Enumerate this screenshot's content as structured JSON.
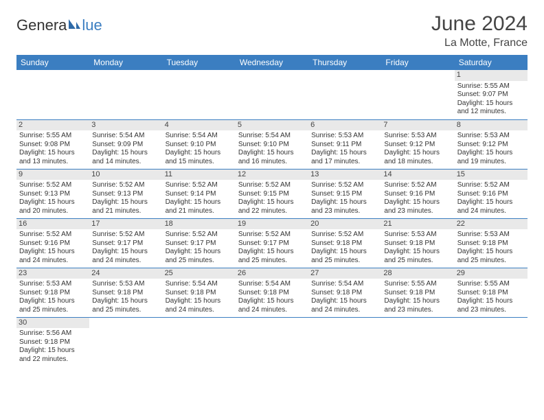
{
  "brand": {
    "part1": "Genera",
    "part2": "lue"
  },
  "header": {
    "month": "June 2024",
    "location": "La Motte, France"
  },
  "colors": {
    "accent": "#3b7ec1",
    "header_bg": "#3b7ec1",
    "daynum_bg": "#e9e9e9",
    "empty_bg": "#f2f2f2"
  },
  "weekdays": [
    "Sunday",
    "Monday",
    "Tuesday",
    "Wednesday",
    "Thursday",
    "Friday",
    "Saturday"
  ],
  "days": [
    {
      "n": 1,
      "sr": "5:55 AM",
      "ss": "9:07 PM",
      "dl": "15 hours and 12 minutes."
    },
    {
      "n": 2,
      "sr": "5:55 AM",
      "ss": "9:08 PM",
      "dl": "15 hours and 13 minutes."
    },
    {
      "n": 3,
      "sr": "5:54 AM",
      "ss": "9:09 PM",
      "dl": "15 hours and 14 minutes."
    },
    {
      "n": 4,
      "sr": "5:54 AM",
      "ss": "9:10 PM",
      "dl": "15 hours and 15 minutes."
    },
    {
      "n": 5,
      "sr": "5:54 AM",
      "ss": "9:10 PM",
      "dl": "15 hours and 16 minutes."
    },
    {
      "n": 6,
      "sr": "5:53 AM",
      "ss": "9:11 PM",
      "dl": "15 hours and 17 minutes."
    },
    {
      "n": 7,
      "sr": "5:53 AM",
      "ss": "9:12 PM",
      "dl": "15 hours and 18 minutes."
    },
    {
      "n": 8,
      "sr": "5:53 AM",
      "ss": "9:12 PM",
      "dl": "15 hours and 19 minutes."
    },
    {
      "n": 9,
      "sr": "5:52 AM",
      "ss": "9:13 PM",
      "dl": "15 hours and 20 minutes."
    },
    {
      "n": 10,
      "sr": "5:52 AM",
      "ss": "9:13 PM",
      "dl": "15 hours and 21 minutes."
    },
    {
      "n": 11,
      "sr": "5:52 AM",
      "ss": "9:14 PM",
      "dl": "15 hours and 21 minutes."
    },
    {
      "n": 12,
      "sr": "5:52 AM",
      "ss": "9:15 PM",
      "dl": "15 hours and 22 minutes."
    },
    {
      "n": 13,
      "sr": "5:52 AM",
      "ss": "9:15 PM",
      "dl": "15 hours and 23 minutes."
    },
    {
      "n": 14,
      "sr": "5:52 AM",
      "ss": "9:16 PM",
      "dl": "15 hours and 23 minutes."
    },
    {
      "n": 15,
      "sr": "5:52 AM",
      "ss": "9:16 PM",
      "dl": "15 hours and 24 minutes."
    },
    {
      "n": 16,
      "sr": "5:52 AM",
      "ss": "9:16 PM",
      "dl": "15 hours and 24 minutes."
    },
    {
      "n": 17,
      "sr": "5:52 AM",
      "ss": "9:17 PM",
      "dl": "15 hours and 24 minutes."
    },
    {
      "n": 18,
      "sr": "5:52 AM",
      "ss": "9:17 PM",
      "dl": "15 hours and 25 minutes."
    },
    {
      "n": 19,
      "sr": "5:52 AM",
      "ss": "9:17 PM",
      "dl": "15 hours and 25 minutes."
    },
    {
      "n": 20,
      "sr": "5:52 AM",
      "ss": "9:18 PM",
      "dl": "15 hours and 25 minutes."
    },
    {
      "n": 21,
      "sr": "5:53 AM",
      "ss": "9:18 PM",
      "dl": "15 hours and 25 minutes."
    },
    {
      "n": 22,
      "sr": "5:53 AM",
      "ss": "9:18 PM",
      "dl": "15 hours and 25 minutes."
    },
    {
      "n": 23,
      "sr": "5:53 AM",
      "ss": "9:18 PM",
      "dl": "15 hours and 25 minutes."
    },
    {
      "n": 24,
      "sr": "5:53 AM",
      "ss": "9:18 PM",
      "dl": "15 hours and 25 minutes."
    },
    {
      "n": 25,
      "sr": "5:54 AM",
      "ss": "9:18 PM",
      "dl": "15 hours and 24 minutes."
    },
    {
      "n": 26,
      "sr": "5:54 AM",
      "ss": "9:18 PM",
      "dl": "15 hours and 24 minutes."
    },
    {
      "n": 27,
      "sr": "5:54 AM",
      "ss": "9:18 PM",
      "dl": "15 hours and 24 minutes."
    },
    {
      "n": 28,
      "sr": "5:55 AM",
      "ss": "9:18 PM",
      "dl": "15 hours and 23 minutes."
    },
    {
      "n": 29,
      "sr": "5:55 AM",
      "ss": "9:18 PM",
      "dl": "15 hours and 23 minutes."
    },
    {
      "n": 30,
      "sr": "5:56 AM",
      "ss": "9:18 PM",
      "dl": "15 hours and 22 minutes."
    }
  ],
  "labels": {
    "sunrise": "Sunrise:",
    "sunset": "Sunset:",
    "daylight": "Daylight:"
  },
  "layout": {
    "first_weekday_index": 6,
    "total_cells": 42
  }
}
